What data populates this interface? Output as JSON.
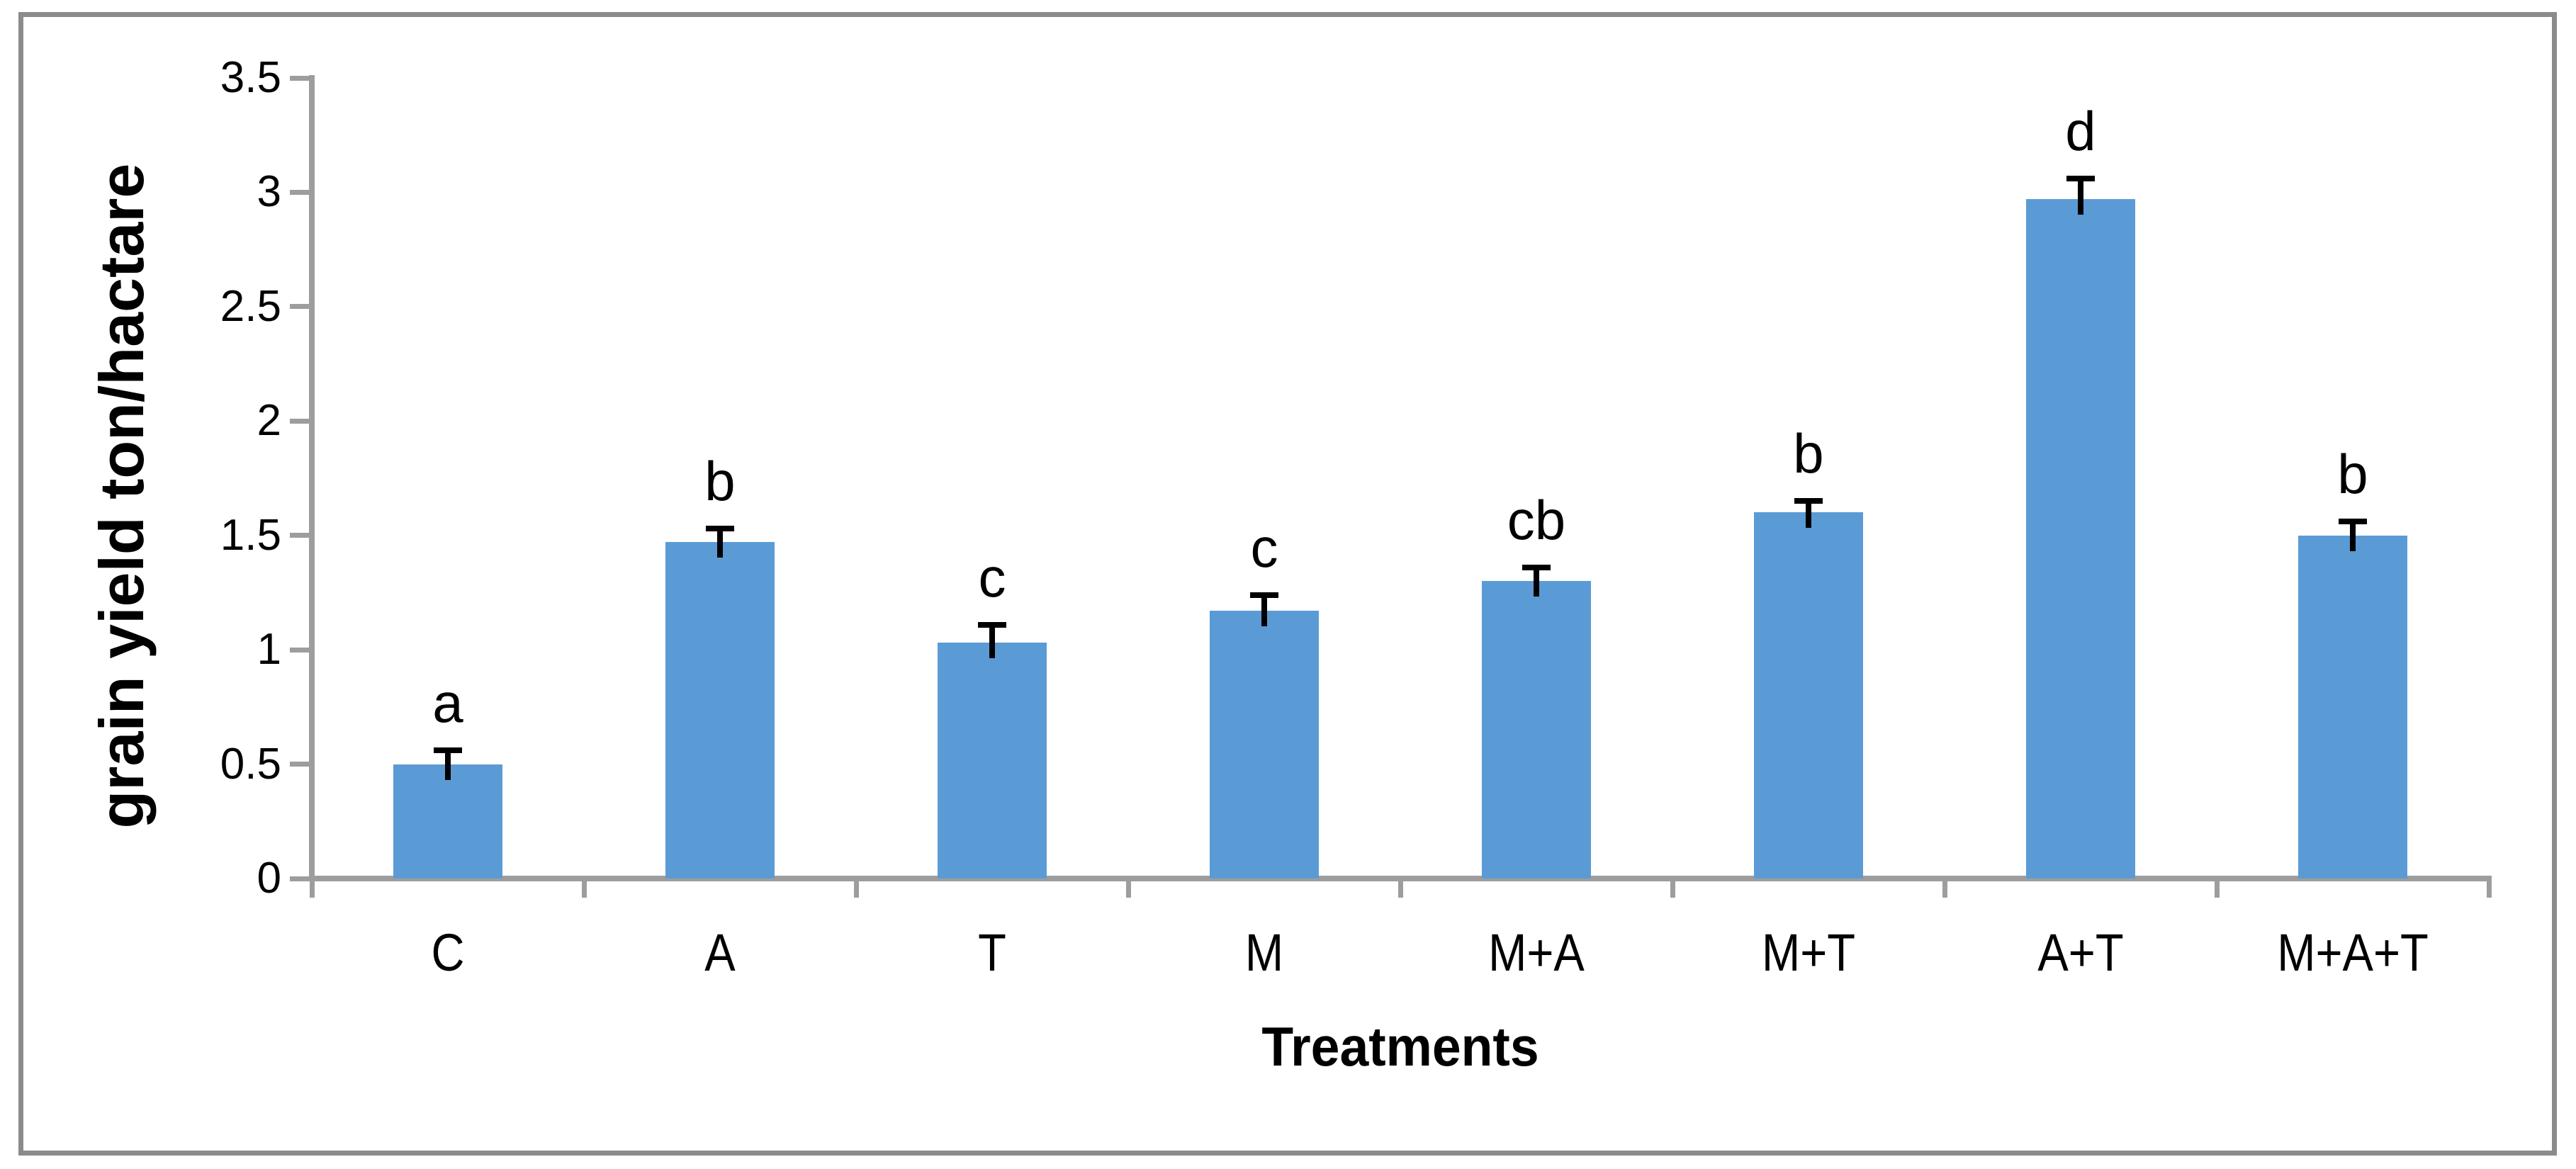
{
  "figure": {
    "background": "#ffffff",
    "border_color": "#8b8b8b"
  },
  "chart_data": {
    "type": "bar",
    "title": "",
    "xlabel": "Treatments",
    "ylabel": "grain yield ton/hactare",
    "categories": [
      "C",
      "A",
      "T",
      "M",
      "M+A",
      "M+T",
      "A+T",
      "M+A+T"
    ],
    "series": [
      {
        "name": "grain yield",
        "values": [
          0.5,
          1.47,
          1.03,
          1.17,
          1.3,
          1.6,
          2.97,
          1.5
        ],
        "error_up": [
          0.06,
          0.06,
          0.08,
          0.07,
          0.06,
          0.05,
          0.09,
          0.06
        ]
      }
    ],
    "significance_letters": [
      "a",
      "b",
      "c",
      "c",
      "cb",
      "b",
      "d",
      "b"
    ],
    "ylim": [
      0,
      3.5
    ],
    "yticks": [
      "0",
      "0.5",
      "1",
      "1.5",
      "2",
      "2.5",
      "3",
      "3.5"
    ],
    "grid": false,
    "legend": "none",
    "bar_color": "#5B9BD5",
    "axis_color": "#9d9d9d",
    "error_bar_color": "#000000",
    "text_color": "#000000"
  }
}
